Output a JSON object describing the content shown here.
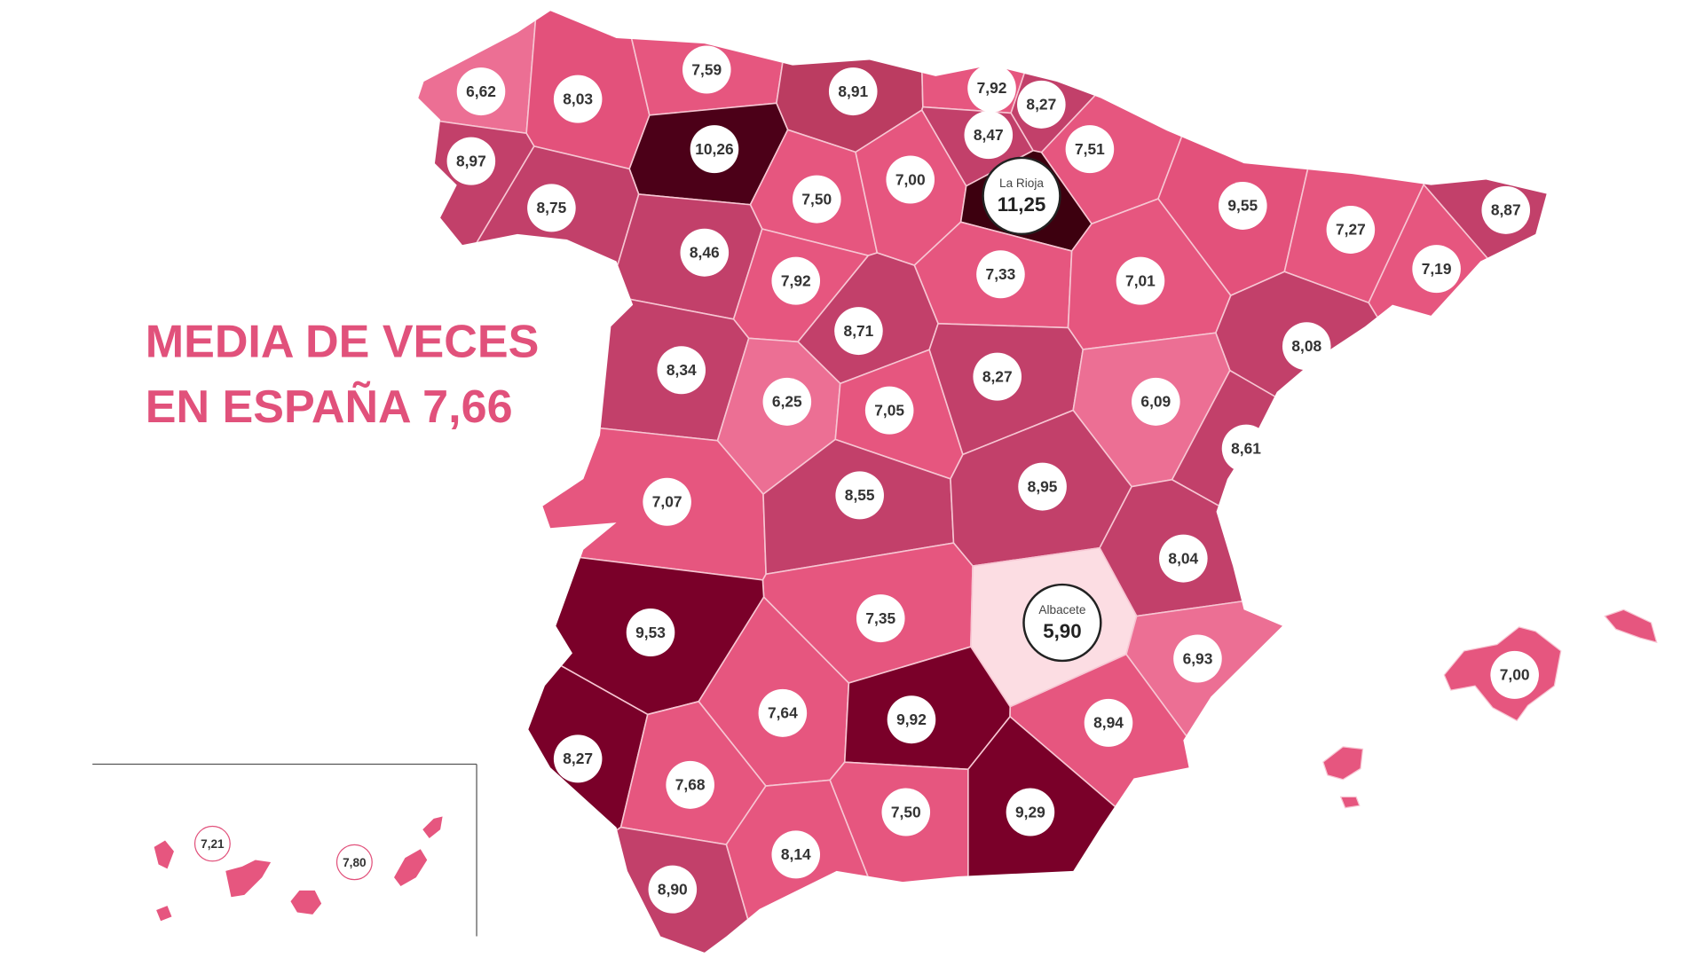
{
  "title": [
    "MEDIA DE VECES",
    "EN ESPAÑA 7,66"
  ],
  "regions": [
    {
      "value": "6,62",
      "color": "#ec6f94"
    },
    {
      "value": "8,03",
      "color": "#e3517b"
    },
    {
      "value": "7,59",
      "color": "#e6567f"
    },
    {
      "value": "8,91",
      "color": "#bb3c61"
    },
    {
      "value": "7,92",
      "color": "#e6567f"
    },
    {
      "value": "8,27",
      "color": "#c2406a"
    },
    {
      "value": "8,47",
      "color": "#c2406a"
    },
    {
      "value": "7,51",
      "color": "#e6567f"
    },
    {
      "value": "10,26",
      "color": "#4c0018"
    },
    {
      "value": "8,97",
      "color": "#c2406a"
    },
    {
      "value": "8,75",
      "color": "#c2406a"
    },
    {
      "value": "7,50",
      "color": "#e6567f"
    },
    {
      "value": "7,00",
      "color": "#e6567f"
    },
    {
      "name": "La Rioja",
      "value": "11,25",
      "color": "#3d000f"
    },
    {
      "value": "9,55",
      "color": "#e3517b"
    },
    {
      "value": "7,27",
      "color": "#e6567f"
    },
    {
      "value": "8,87",
      "color": "#c2406a"
    },
    {
      "value": "7,19",
      "color": "#e6567f"
    },
    {
      "value": "8,46",
      "color": "#c2406a"
    },
    {
      "value": "7,92",
      "color": "#e6567f"
    },
    {
      "value": "7,33",
      "color": "#e6567f"
    },
    {
      "value": "7,01",
      "color": "#e6567f"
    },
    {
      "value": "8,71",
      "color": "#c2406a"
    },
    {
      "value": "8,08",
      "color": "#c2406a"
    },
    {
      "value": "8,34",
      "color": "#c2406a"
    },
    {
      "value": "6,25",
      "color": "#ec6f94"
    },
    {
      "value": "7,05",
      "color": "#e6567f"
    },
    {
      "value": "8,27",
      "color": "#c2406a"
    },
    {
      "value": "6,09",
      "color": "#ec6f94"
    },
    {
      "value": "8,61",
      "color": "#c2406a"
    },
    {
      "value": "7,07",
      "color": "#e6567f"
    },
    {
      "value": "8,55",
      "color": "#c2406a"
    },
    {
      "value": "8,95",
      "color": "#c2406a"
    },
    {
      "value": "8,04",
      "color": "#c2406a"
    },
    {
      "value": "7,35",
      "color": "#e6567f"
    },
    {
      "name": "Albacete",
      "value": "5,90",
      "color": "#fcdde3"
    },
    {
      "value": "9,53",
      "color": "#7a0029"
    },
    {
      "value": "6,93",
      "color": "#ec6f94"
    },
    {
      "value": "7,00",
      "color": "#e6567f"
    },
    {
      "value": "7,64",
      "color": "#e6567f"
    },
    {
      "value": "9,92",
      "color": "#7a0029"
    },
    {
      "value": "8,94",
      "color": "#e6567f"
    },
    {
      "value": "8,27",
      "color": "#7a0029"
    },
    {
      "value": "7,68",
      "color": "#e6567f"
    },
    {
      "value": "7,50",
      "color": "#e6567f"
    },
    {
      "value": "9,29",
      "color": "#7a0029"
    },
    {
      "value": "8,14",
      "color": "#e6567f"
    },
    {
      "value": "8,90",
      "color": "#c2406a"
    }
  ],
  "canarias": [
    {
      "value": "7,21",
      "color": "#e6567f"
    },
    {
      "value": "7,80",
      "color": "#e6567f"
    }
  ]
}
